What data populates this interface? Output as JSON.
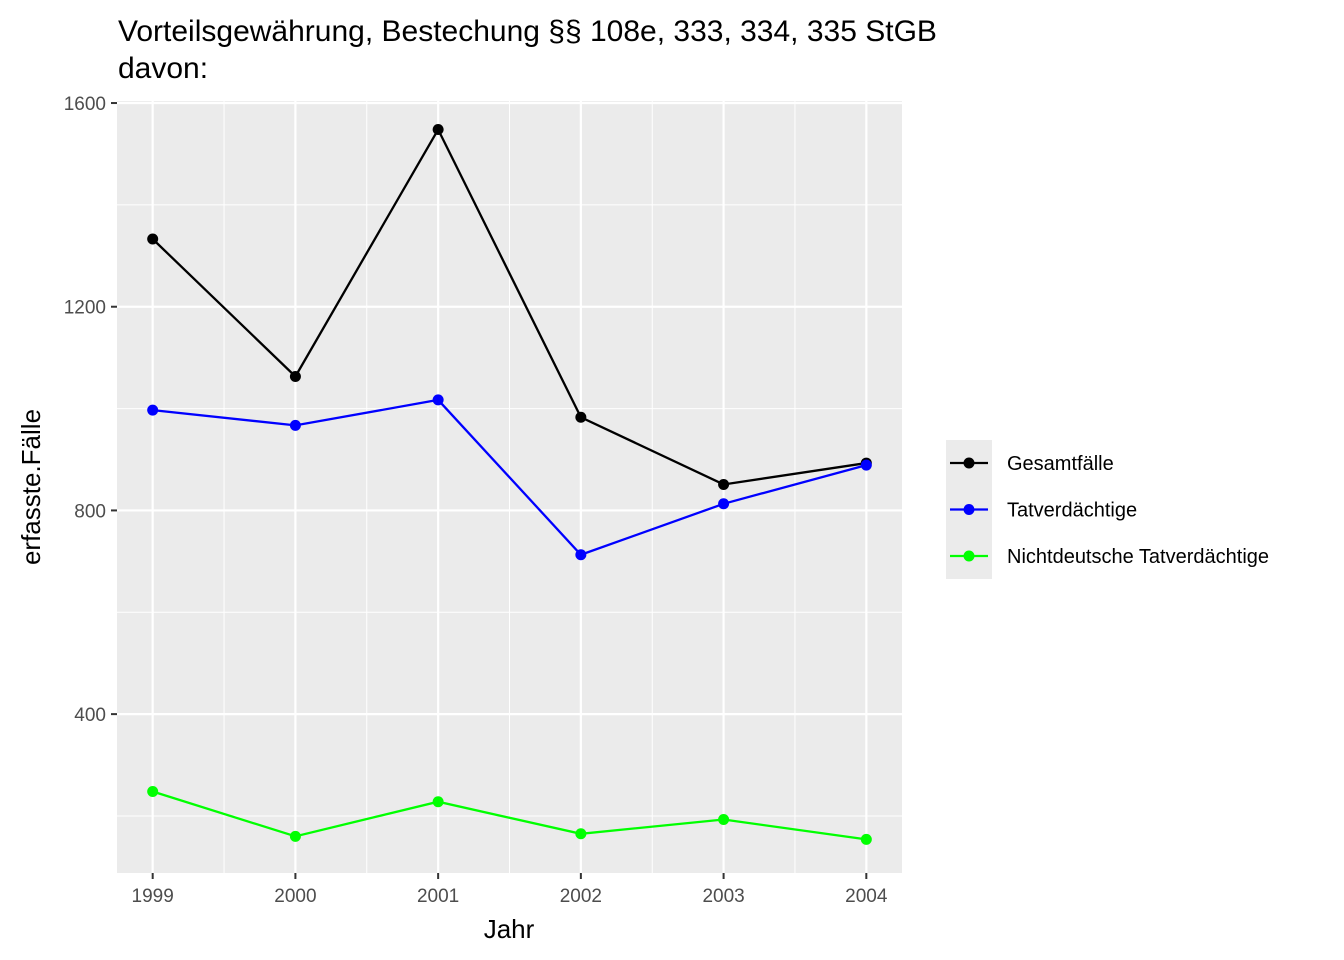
{
  "chart_data": {
    "type": "line",
    "title": "Vorteilsgewährung, Bestechung §§ 108e, 333, 334, 335 StGB",
    "subtitle": "davon:",
    "xlabel": "Jahr",
    "ylabel": "erfasste.Fälle",
    "x": [
      1999,
      2000,
      2001,
      2002,
      2003,
      2004
    ],
    "xlim": [
      1998.75,
      2004.25
    ],
    "ylim": [
      88,
      1604
    ],
    "y_ticks": [
      400,
      800,
      1200,
      1600
    ],
    "y_minor_ticks": [
      200,
      600,
      1000,
      1400
    ],
    "x_minor_ticks": [
      1999.5,
      2000.5,
      2001.5,
      2002.5,
      2003.5
    ],
    "grid": true,
    "legend_position": "right",
    "series": [
      {
        "name": "Gesamtfälle",
        "color": "#000000",
        "values": [
          1333,
          1063,
          1548,
          983,
          851,
          893
        ]
      },
      {
        "name": "Tatverdächtige",
        "color": "#0000ff",
        "values": [
          997,
          967,
          1017,
          713,
          813,
          889
        ]
      },
      {
        "name": "Nichtdeutsche Tatverdächtige",
        "color": "#00ff00",
        "values": [
          248,
          160,
          228,
          165,
          193,
          154
        ]
      }
    ]
  }
}
